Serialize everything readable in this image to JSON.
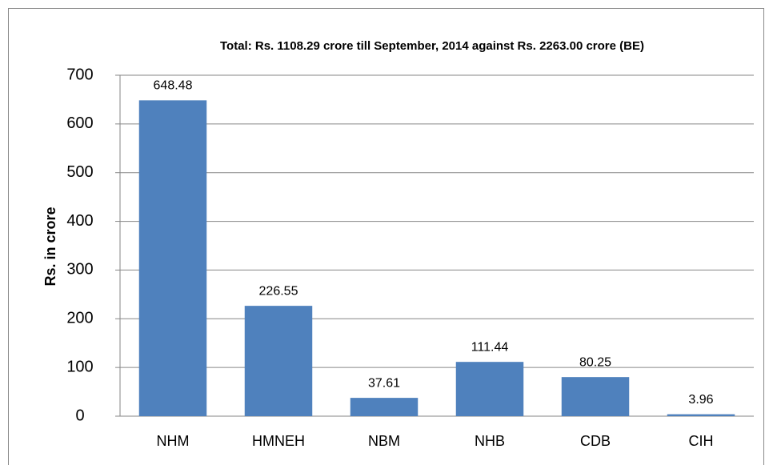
{
  "chart_data": {
    "type": "bar",
    "title": "Total: Rs. 1108.29 crore till September, 2014 against Rs. 2263.00 crore (BE)",
    "y_label": "Rs. in crore",
    "categories": [
      "NHM",
      "HMNEH",
      "NBM",
      "NHB",
      "CDB",
      "CIH"
    ],
    "values": [
      648.48,
      226.55,
      37.61,
      111.44,
      80.25,
      3.96
    ],
    "color": "#4f81bd",
    "ylim": [
      0,
      700
    ],
    "yticks": [
      0,
      100,
      200,
      300,
      400,
      500,
      600,
      700
    ],
    "grid": true
  }
}
